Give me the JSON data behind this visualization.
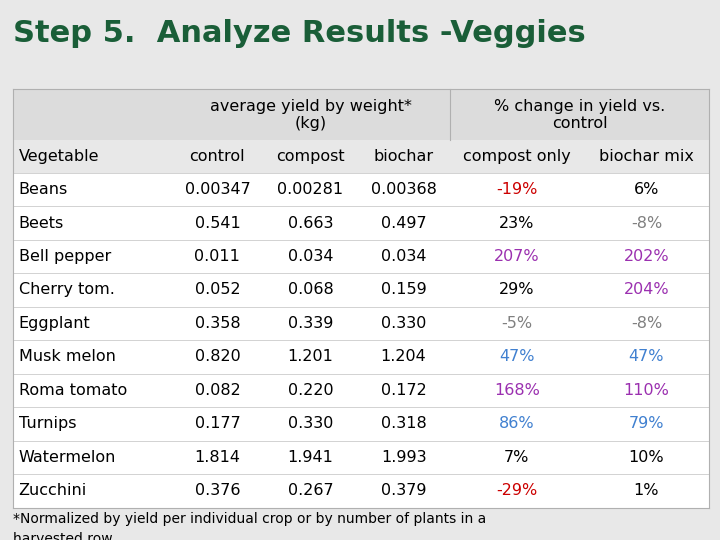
{
  "title": "Step 5.  Analyze Results -Veggies",
  "title_color": "#1a5e38",
  "title_fontsize": 22,
  "bg_color": "#e8e8e8",
  "sub_headers": [
    "Vegetable",
    "control",
    "compost",
    "biochar",
    "compost only",
    "biochar mix"
  ],
  "rows": [
    [
      "Beans",
      "0.00347",
      "0.00281",
      "0.00368",
      "-19%",
      "6%"
    ],
    [
      "Beets",
      "0.541",
      "0.663",
      "0.497",
      "23%",
      "-8%"
    ],
    [
      "Bell pepper",
      "0.011",
      "0.034",
      "0.034",
      "207%",
      "202%"
    ],
    [
      "Cherry tom.",
      "0.052",
      "0.068",
      "0.159",
      "29%",
      "204%"
    ],
    [
      "Eggplant",
      "0.358",
      "0.339",
      "0.330",
      "-5%",
      "-8%"
    ],
    [
      "Musk melon",
      "0.820",
      "1.201",
      "1.204",
      "47%",
      "47%"
    ],
    [
      "Roma tomato",
      "0.082",
      "0.220",
      "0.172",
      "168%",
      "110%"
    ],
    [
      "Turnips",
      "0.177",
      "0.330",
      "0.318",
      "86%",
      "79%"
    ],
    [
      "Watermelon",
      "1.814",
      "1.941",
      "1.993",
      "7%",
      "10%"
    ],
    [
      "Zucchini",
      "0.376",
      "0.267",
      "0.379",
      "-29%",
      "1%"
    ]
  ],
  "row_colors": [
    [
      "#000000",
      "#000000",
      "#000000",
      "#cc0000",
      "#000000"
    ],
    [
      "#000000",
      "#000000",
      "#000000",
      "#000000",
      "#808080"
    ],
    [
      "#000000",
      "#000000",
      "#000000",
      "#9b30b0",
      "#9b30b0"
    ],
    [
      "#000000",
      "#000000",
      "#000000",
      "#000000",
      "#9b30b0"
    ],
    [
      "#000000",
      "#000000",
      "#000000",
      "#808080",
      "#808080"
    ],
    [
      "#000000",
      "#000000",
      "#000000",
      "#4080d0",
      "#4080d0"
    ],
    [
      "#000000",
      "#000000",
      "#000000",
      "#9b30b0",
      "#9b30b0"
    ],
    [
      "#000000",
      "#000000",
      "#000000",
      "#4080d0",
      "#4080d0"
    ],
    [
      "#000000",
      "#000000",
      "#000000",
      "#000000",
      "#000000"
    ],
    [
      "#000000",
      "#000000",
      "#000000",
      "#cc0000",
      "#000000"
    ]
  ],
  "header1_text": "average yield by weight*\n(kg)",
  "header2_text": "% change in yield vs.\ncontrol",
  "footnote_line1": "*Normalized by yield per individual crop or by number of plants in a",
  "footnote_line2": "harvested row.",
  "col_aligns": [
    "left",
    "center",
    "center",
    "center",
    "center",
    "center"
  ],
  "table_font_size": 11.5
}
